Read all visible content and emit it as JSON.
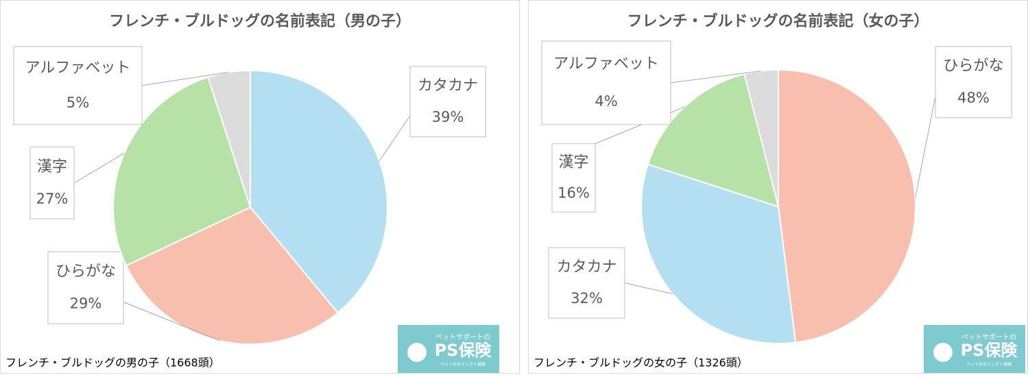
{
  "chart_data": [
    {
      "type": "pie",
      "title": "フレンチ・ブルドッグの名前表記（男の子）",
      "categories": [
        "カタカナ",
        "ひらがな",
        "漢字",
        "アルファベット"
      ],
      "values": [
        39,
        29,
        27,
        5
      ],
      "value_labels": [
        "39%",
        "29%",
        "27%",
        "5%"
      ],
      "colors": [
        "#b4dff2",
        "#f8bfae",
        "#b7e2a7",
        "#dcdcdc"
      ],
      "footnote": "フレンチ・ブルドッグの男の子（1668頭）"
    },
    {
      "type": "pie",
      "title": "フレンチ・ブルドッグの名前表記（女の子）",
      "categories": [
        "ひらがな",
        "カタカナ",
        "漢字",
        "アルファベット"
      ],
      "values": [
        48,
        32,
        16,
        4
      ],
      "value_labels": [
        "48%",
        "32%",
        "16%",
        "4%"
      ],
      "colors": [
        "#f8bfae",
        "#b4dff2",
        "#b7e2a7",
        "#dcdcdc"
      ],
      "footnote": "フレンチ・ブルドッグの女の子（1326頭）"
    }
  ],
  "logo": {
    "tagline": "ペットサポートの",
    "name": "PS保険",
    "subtitle": "ペットのダイレクト保険"
  }
}
